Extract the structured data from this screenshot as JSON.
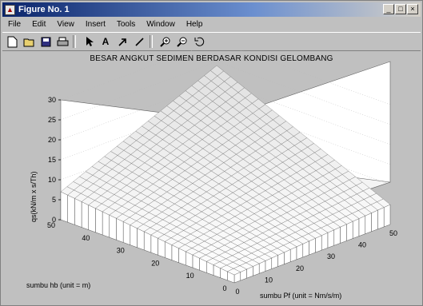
{
  "window": {
    "title": "Figure No. 1",
    "icon": "matlab-figure-icon",
    "controls": [
      "_",
      "□",
      "×"
    ]
  },
  "menu": [
    "File",
    "Edit",
    "View",
    "Insert",
    "Tools",
    "Window",
    "Help"
  ],
  "toolbar": {
    "icons": [
      "new-file-icon",
      "open-folder-icon",
      "save-icon",
      "print-icon",
      "select-arrow-icon",
      "text-insert-icon",
      "arrow-insert-icon",
      "line-insert-icon",
      "zoom-in-icon",
      "zoom-out-icon",
      "rotate-3d-icon"
    ]
  },
  "colors": {
    "window_bg": "#c0c0c0",
    "plot_bg": "#ffffff",
    "titlebar": "#0a246a"
  },
  "chart_data": {
    "type": "surface3d",
    "title": "BESAR ANGKUT SEDIMEN BERDASAR KONDISI GELOMBANG",
    "zlabel": "qs(kN/m x s/Th)",
    "xlabel": "sumbu Pf (unit = Nm/s/m)",
    "ylabel": "sumbu hb (unit = m)",
    "x_ticks": [
      "0",
      "10",
      "20",
      "30",
      "40",
      "50"
    ],
    "y_ticks": [
      "0",
      "10",
      "20",
      "30",
      "40",
      "50"
    ],
    "z_ticks": [
      "0",
      "5",
      "10",
      "15",
      "20",
      "25",
      "30"
    ],
    "xlim": [
      0,
      50
    ],
    "ylim": [
      0,
      50
    ],
    "zlim": [
      0,
      30
    ],
    "grid": true,
    "colormap": "white-gray mesh",
    "surface_z_at_corners": {
      "x0_y0": 2,
      "x50_y0": 5,
      "x0_y50": 7,
      "x50_y50": 24
    }
  }
}
